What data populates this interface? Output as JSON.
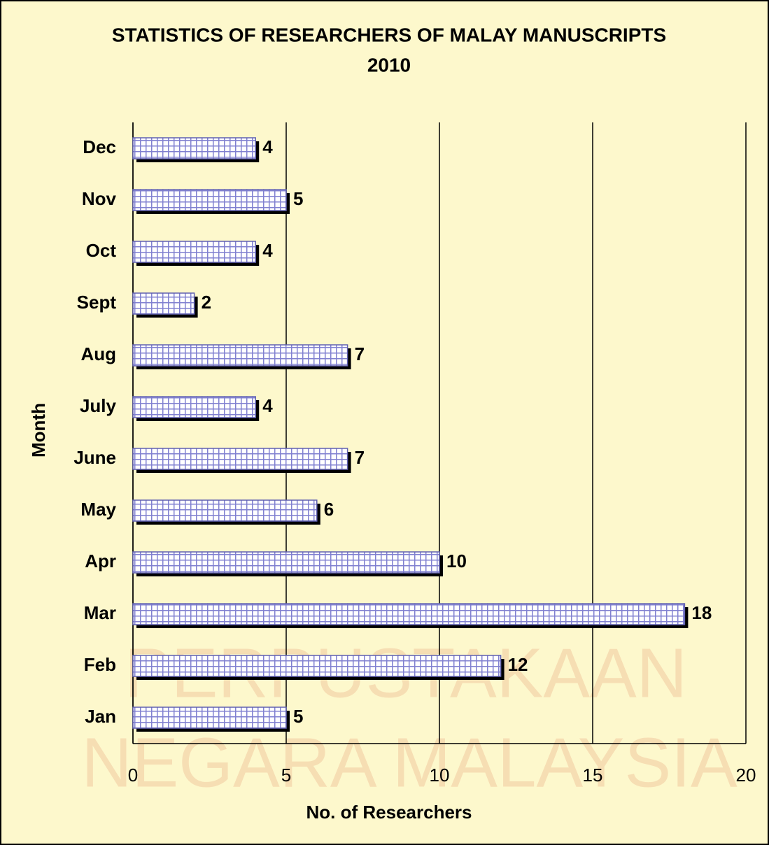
{
  "chart_data": {
    "type": "bar",
    "orientation": "horizontal",
    "title": [
      "STATISTICS OF RESEARCHERS OF MALAY MANUSCRIPTS",
      "2010"
    ],
    "watermark": [
      "PERPUSTAKAAN",
      "NEGARA MALAYSIA"
    ],
    "xlabel": "No. of Researchers",
    "ylabel": "Month",
    "categories": [
      "Jan",
      "Feb",
      "Mar",
      "Apr",
      "May",
      "June",
      "July",
      "Aug",
      "Sept",
      "Oct",
      "Nov",
      "Dec"
    ],
    "values": [
      5,
      12,
      18,
      10,
      6,
      7,
      4,
      7,
      2,
      4,
      5,
      4
    ],
    "color": "#c8c8f0",
    "xlim": [
      0,
      20
    ],
    "xticks": [
      0,
      5,
      10,
      15,
      20
    ],
    "grid": true
  }
}
